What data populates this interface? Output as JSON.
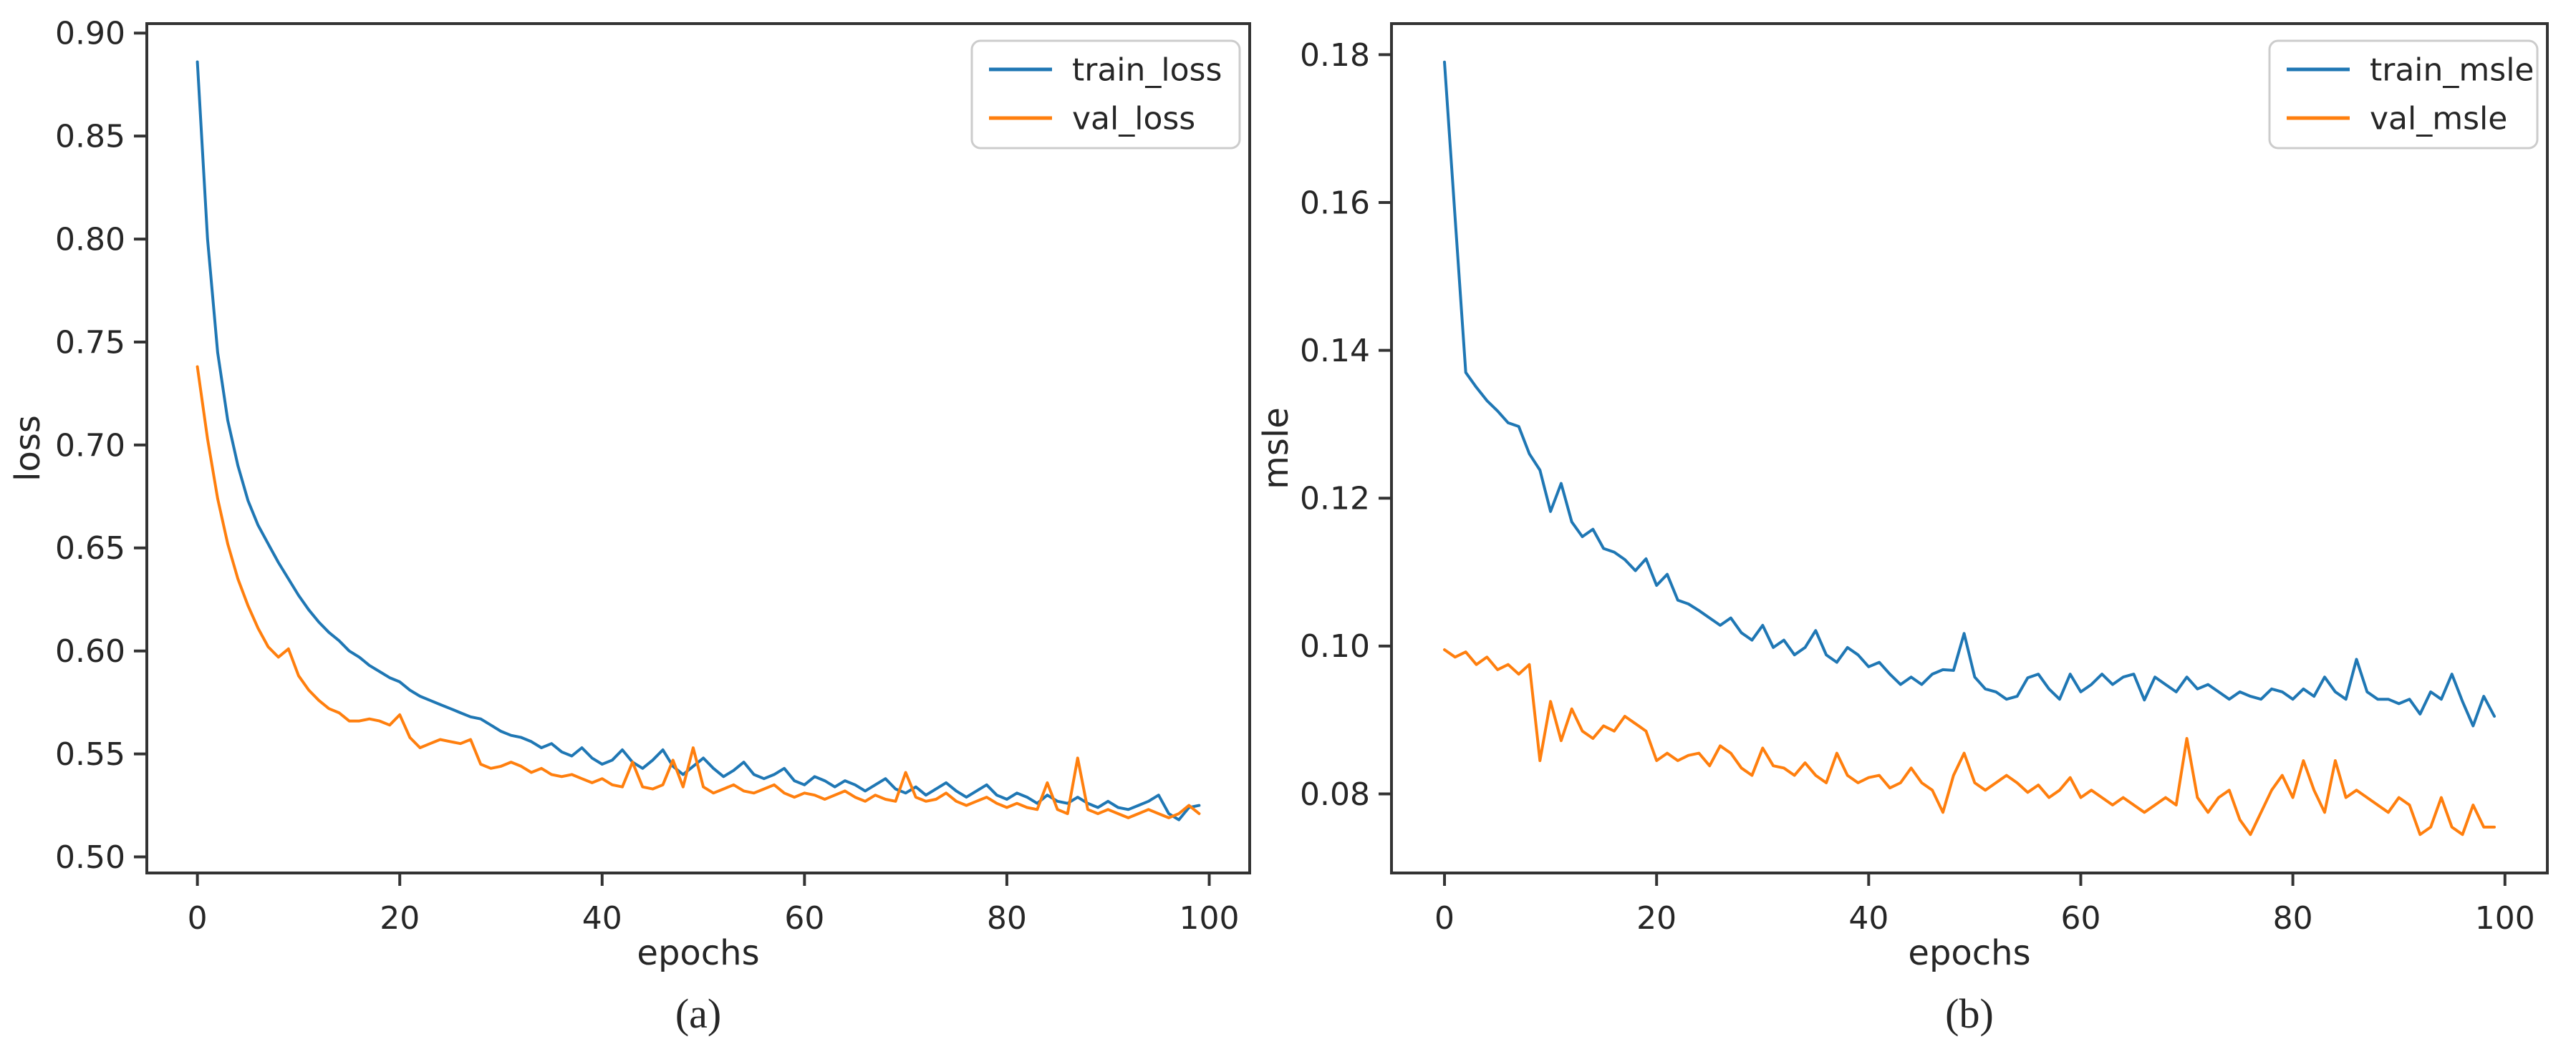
{
  "figure": {
    "background": "#ffffff",
    "spine_color": "#333333",
    "tick_color": "#333333",
    "text_color": "#262626",
    "legend_border_color": "#cccccc",
    "legend_background": "#ffffff"
  },
  "chart_data": [
    {
      "type": "line",
      "panel_label": "(a)",
      "title": "",
      "xlabel": "epochs",
      "ylabel": "loss",
      "xlim": [
        -5,
        104
      ],
      "ylim": [
        0.4922,
        0.9046
      ],
      "x_ticks": [
        0,
        20,
        40,
        60,
        80,
        100
      ],
      "y_ticks": [
        "0.50",
        "0.55",
        "0.60",
        "0.65",
        "0.70",
        "0.75",
        "0.80",
        "0.85",
        "0.90"
      ],
      "grid": false,
      "legend_position": "upper right",
      "x": [
        0,
        1,
        2,
        3,
        4,
        5,
        6,
        7,
        8,
        9,
        10,
        11,
        12,
        13,
        14,
        15,
        16,
        17,
        18,
        19,
        20,
        21,
        22,
        23,
        24,
        25,
        26,
        27,
        28,
        29,
        30,
        31,
        32,
        33,
        34,
        35,
        36,
        37,
        38,
        39,
        40,
        41,
        42,
        43,
        44,
        45,
        46,
        47,
        48,
        49,
        50,
        51,
        52,
        53,
        54,
        55,
        56,
        57,
        58,
        59,
        60,
        61,
        62,
        63,
        64,
        65,
        66,
        67,
        68,
        69,
        70,
        71,
        72,
        73,
        74,
        75,
        76,
        77,
        78,
        79,
        80,
        81,
        82,
        83,
        84,
        85,
        86,
        87,
        88,
        89,
        90,
        91,
        92,
        93,
        94,
        95,
        96,
        97,
        98,
        99
      ],
      "series": [
        {
          "name": "train_loss",
          "color": "#1f77b4",
          "values": [
            0.886,
            0.8,
            0.745,
            0.712,
            0.69,
            0.673,
            0.661,
            0.652,
            0.643,
            0.635,
            0.627,
            0.62,
            0.614,
            0.609,
            0.605,
            0.6,
            0.597,
            0.593,
            0.59,
            0.587,
            0.585,
            0.581,
            0.578,
            0.576,
            0.574,
            0.572,
            0.57,
            0.568,
            0.567,
            0.564,
            0.561,
            0.559,
            0.558,
            0.556,
            0.553,
            0.555,
            0.551,
            0.549,
            0.553,
            0.548,
            0.545,
            0.547,
            0.552,
            0.546,
            0.543,
            0.547,
            0.552,
            0.544,
            0.54,
            0.544,
            0.548,
            0.543,
            0.539,
            0.542,
            0.546,
            0.54,
            0.538,
            0.54,
            0.543,
            0.537,
            0.535,
            0.539,
            0.537,
            0.534,
            0.537,
            0.535,
            0.532,
            0.535,
            0.538,
            0.533,
            0.531,
            0.534,
            0.53,
            0.533,
            0.536,
            0.532,
            0.529,
            0.532,
            0.535,
            0.53,
            0.528,
            0.531,
            0.529,
            0.526,
            0.53,
            0.527,
            0.526,
            0.529,
            0.526,
            0.524,
            0.527,
            0.524,
            0.523,
            0.525,
            0.527,
            0.53,
            0.521,
            0.518,
            0.524,
            0.525
          ]
        },
        {
          "name": "val_loss",
          "color": "#ff7f0e",
          "values": [
            0.738,
            0.703,
            0.674,
            0.652,
            0.635,
            0.622,
            0.611,
            0.602,
            0.597,
            0.601,
            0.588,
            0.581,
            0.576,
            0.572,
            0.57,
            0.566,
            0.566,
            0.567,
            0.566,
            0.564,
            0.569,
            0.558,
            0.553,
            0.555,
            0.557,
            0.556,
            0.555,
            0.557,
            0.545,
            0.543,
            0.544,
            0.546,
            0.544,
            0.541,
            0.543,
            0.54,
            0.539,
            0.54,
            0.538,
            0.536,
            0.538,
            0.535,
            0.534,
            0.546,
            0.534,
            0.533,
            0.535,
            0.547,
            0.534,
            0.553,
            0.534,
            0.531,
            0.533,
            0.535,
            0.532,
            0.531,
            0.533,
            0.535,
            0.531,
            0.529,
            0.531,
            0.53,
            0.528,
            0.53,
            0.532,
            0.529,
            0.527,
            0.53,
            0.528,
            0.527,
            0.541,
            0.529,
            0.527,
            0.528,
            0.531,
            0.527,
            0.525,
            0.527,
            0.529,
            0.526,
            0.524,
            0.526,
            0.524,
            0.523,
            0.536,
            0.523,
            0.521,
            0.548,
            0.523,
            0.521,
            0.523,
            0.521,
            0.519,
            0.521,
            0.523,
            0.521,
            0.519,
            0.521,
            0.525,
            0.521
          ]
        }
      ]
    },
    {
      "type": "line",
      "panel_label": "(b)",
      "title": "",
      "xlabel": "epochs",
      "ylabel": "msle",
      "xlim": [
        -5,
        104
      ],
      "ylim": [
        0.0693,
        0.1842
      ],
      "x_ticks": [
        0,
        20,
        40,
        60,
        80,
        100
      ],
      "y_ticks": [
        "0.08",
        "0.10",
        "0.12",
        "0.14",
        "0.16",
        "0.18"
      ],
      "grid": false,
      "legend_position": "upper right",
      "x": [
        0,
        1,
        2,
        3,
        4,
        5,
        6,
        7,
        8,
        9,
        10,
        11,
        12,
        13,
        14,
        15,
        16,
        17,
        18,
        19,
        20,
        21,
        22,
        23,
        24,
        25,
        26,
        27,
        28,
        29,
        30,
        31,
        32,
        33,
        34,
        35,
        36,
        37,
        38,
        39,
        40,
        41,
        42,
        43,
        44,
        45,
        46,
        47,
        48,
        49,
        50,
        51,
        52,
        53,
        54,
        55,
        56,
        57,
        58,
        59,
        60,
        61,
        62,
        63,
        64,
        65,
        66,
        67,
        68,
        69,
        70,
        71,
        72,
        73,
        74,
        75,
        76,
        77,
        78,
        79,
        80,
        81,
        82,
        83,
        84,
        85,
        86,
        87,
        88,
        89,
        90,
        91,
        92,
        93,
        94,
        95,
        96,
        97,
        98,
        99
      ],
      "series": [
        {
          "name": "train_msle",
          "color": "#1f77b4",
          "values": [
            0.179,
            0.158,
            0.137,
            0.135,
            0.1332,
            0.1318,
            0.1302,
            0.1297,
            0.126,
            0.1238,
            0.1182,
            0.122,
            0.1168,
            0.1148,
            0.1158,
            0.1132,
            0.1127,
            0.1117,
            0.1102,
            0.1118,
            0.1082,
            0.1097,
            0.1062,
            0.1057,
            0.1048,
            0.1038,
            0.1028,
            0.1038,
            0.1018,
            0.1008,
            0.1028,
            0.0998,
            0.1008,
            0.0988,
            0.0998,
            0.1021,
            0.0988,
            0.0978,
            0.0998,
            0.0988,
            0.0972,
            0.0978,
            0.0962,
            0.0948,
            0.0958,
            0.0948,
            0.0962,
            0.0968,
            0.0967,
            0.1017,
            0.0958,
            0.0942,
            0.0938,
            0.0928,
            0.0932,
            0.0957,
            0.0962,
            0.0942,
            0.0928,
            0.0962,
            0.0938,
            0.0948,
            0.0962,
            0.0948,
            0.0958,
            0.0962,
            0.0927,
            0.0958,
            0.0948,
            0.0938,
            0.0958,
            0.0942,
            0.0948,
            0.0938,
            0.0928,
            0.0938,
            0.0932,
            0.0928,
            0.0942,
            0.0938,
            0.0928,
            0.0942,
            0.0932,
            0.0958,
            0.0938,
            0.0928,
            0.0982,
            0.0938,
            0.0928,
            0.0928,
            0.0922,
            0.0928,
            0.0908,
            0.0938,
            0.0928,
            0.0962,
            0.0925,
            0.0892,
            0.0932,
            0.0905
          ]
        },
        {
          "name": "val_msle",
          "color": "#ff7f0e",
          "values": [
            0.0995,
            0.0985,
            0.0992,
            0.0975,
            0.0985,
            0.0968,
            0.0975,
            0.0962,
            0.0975,
            0.0845,
            0.0925,
            0.0872,
            0.0915,
            0.0885,
            0.0875,
            0.0892,
            0.0885,
            0.0905,
            0.0895,
            0.0885,
            0.0845,
            0.0855,
            0.0845,
            0.0852,
            0.0855,
            0.0838,
            0.0865,
            0.0855,
            0.0835,
            0.0825,
            0.0862,
            0.0838,
            0.0835,
            0.0825,
            0.0842,
            0.0825,
            0.0815,
            0.0855,
            0.0825,
            0.0815,
            0.0822,
            0.0825,
            0.0808,
            0.0815,
            0.0835,
            0.0815,
            0.0805,
            0.0775,
            0.0825,
            0.0855,
            0.0815,
            0.0805,
            0.0815,
            0.0825,
            0.0815,
            0.0802,
            0.0812,
            0.0795,
            0.0805,
            0.0822,
            0.0795,
            0.0805,
            0.0795,
            0.0785,
            0.0795,
            0.0785,
            0.0775,
            0.0785,
            0.0795,
            0.0785,
            0.0875,
            0.0795,
            0.0775,
            0.0795,
            0.0805,
            0.0765,
            0.0745,
            0.0775,
            0.0805,
            0.0825,
            0.0795,
            0.0845,
            0.0805,
            0.0775,
            0.0845,
            0.0795,
            0.0805,
            0.0795,
            0.0785,
            0.0775,
            0.0795,
            0.0785,
            0.0745,
            0.0755,
            0.0795,
            0.0755,
            0.0745,
            0.0785,
            0.0755,
            0.0755
          ]
        }
      ]
    }
  ]
}
